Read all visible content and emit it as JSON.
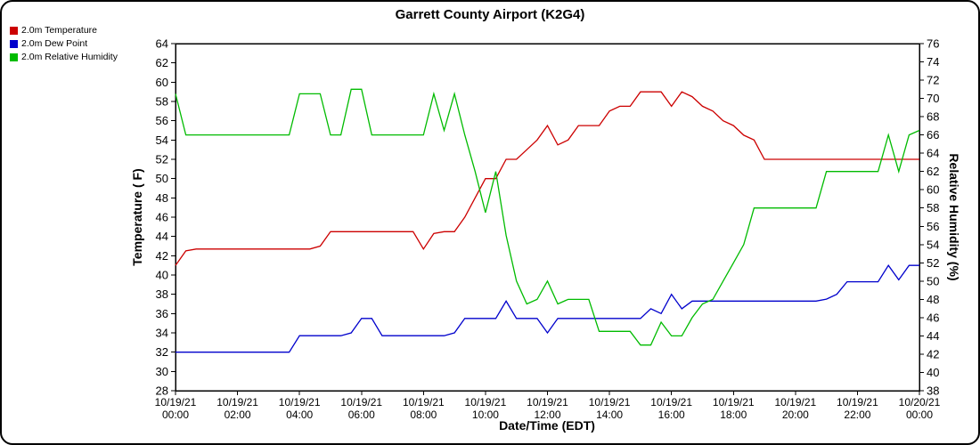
{
  "chart_data": {
    "type": "line",
    "title": "Garrett County Airport (K2G4)",
    "xlabel": "Date/Time (EDT)",
    "ylabel_left": "Temperature ( F)",
    "ylabel_right": "Relative Humidity (%)",
    "grid": false,
    "legend_position": "top-left",
    "left_axis": {
      "min": 28,
      "max": 64,
      "step": 2
    },
    "right_axis": {
      "min": 38,
      "max": 76,
      "step": 2
    },
    "x_range_hours": [
      0,
      24
    ],
    "x_interval_minutes": 20,
    "x_ticks": [
      {
        "date": "10/19/21",
        "time": "00:00"
      },
      {
        "date": "10/19/21",
        "time": "02:00"
      },
      {
        "date": "10/19/21",
        "time": "04:00"
      },
      {
        "date": "10/19/21",
        "time": "06:00"
      },
      {
        "date": "10/19/21",
        "time": "08:00"
      },
      {
        "date": "10/19/21",
        "time": "10:00"
      },
      {
        "date": "10/19/21",
        "time": "12:00"
      },
      {
        "date": "10/19/21",
        "time": "14:00"
      },
      {
        "date": "10/19/21",
        "time": "16:00"
      },
      {
        "date": "10/19/21",
        "time": "18:00"
      },
      {
        "date": "10/19/21",
        "time": "20:00"
      },
      {
        "date": "10/19/21",
        "time": "22:00"
      },
      {
        "date": "10/20/21",
        "time": "00:00"
      }
    ],
    "series": [
      {
        "name": "2.0m Temperature",
        "color": "#cc0000",
        "axis": "left",
        "values": [
          41,
          42.5,
          42.7,
          42.7,
          42.7,
          42.7,
          42.7,
          42.7,
          42.7,
          42.7,
          42.7,
          42.7,
          42.7,
          42.7,
          43,
          44.5,
          44.5,
          44.5,
          44.5,
          44.5,
          44.5,
          44.5,
          44.5,
          44.5,
          42.7,
          44.3,
          44.5,
          44.5,
          46,
          48,
          50,
          50,
          52,
          52,
          53,
          54,
          55.5,
          53.5,
          54,
          55.5,
          55.5,
          55.5,
          57,
          57.5,
          57.5,
          59,
          59,
          59,
          57.5,
          59,
          58.5,
          57.5,
          57,
          56,
          55.5,
          54.5,
          54,
          52,
          52,
          52,
          52,
          52,
          52,
          52,
          52,
          52,
          52,
          52,
          52,
          52,
          52,
          52,
          52
        ]
      },
      {
        "name": "2.0m Dew Point",
        "color": "#0000cc",
        "axis": "left",
        "values": [
          32,
          32,
          32,
          32,
          32,
          32,
          32,
          32,
          32,
          32,
          32,
          32,
          33.7,
          33.7,
          33.7,
          33.7,
          33.7,
          34,
          35.5,
          35.5,
          33.7,
          33.7,
          33.7,
          33.7,
          33.7,
          33.7,
          33.7,
          34,
          35.5,
          35.5,
          35.5,
          35.5,
          37.3,
          35.5,
          35.5,
          35.5,
          34,
          35.5,
          35.5,
          35.5,
          35.5,
          35.5,
          35.5,
          35.5,
          35.5,
          35.5,
          36.5,
          36,
          38,
          36.5,
          37.3,
          37.3,
          37.3,
          37.3,
          37.3,
          37.3,
          37.3,
          37.3,
          37.3,
          37.3,
          37.3,
          37.3,
          37.3,
          37.5,
          38,
          39.3,
          39.3,
          39.3,
          39.3,
          41,
          39.5,
          41,
          41
        ]
      },
      {
        "name": "2.0m Relative Humidity",
        "color": "#00bb00",
        "axis": "right",
        "values": [
          70.5,
          66,
          66,
          66,
          66,
          66,
          66,
          66,
          66,
          66,
          66,
          66,
          70.5,
          70.5,
          70.5,
          66,
          66,
          71,
          71,
          66,
          66,
          66,
          66,
          66,
          66,
          70.5,
          66.5,
          70.5,
          66,
          62,
          57.5,
          62,
          55,
          50,
          47.5,
          48,
          50,
          47.5,
          48,
          48,
          48,
          44.5,
          44.5,
          44.5,
          44.5,
          43,
          43,
          45.5,
          44,
          44,
          46,
          47.5,
          48,
          50,
          52,
          54,
          58,
          58,
          58,
          58,
          58,
          58,
          58,
          62,
          62,
          62,
          62,
          62,
          62,
          66,
          62,
          66,
          66.5
        ]
      }
    ]
  }
}
